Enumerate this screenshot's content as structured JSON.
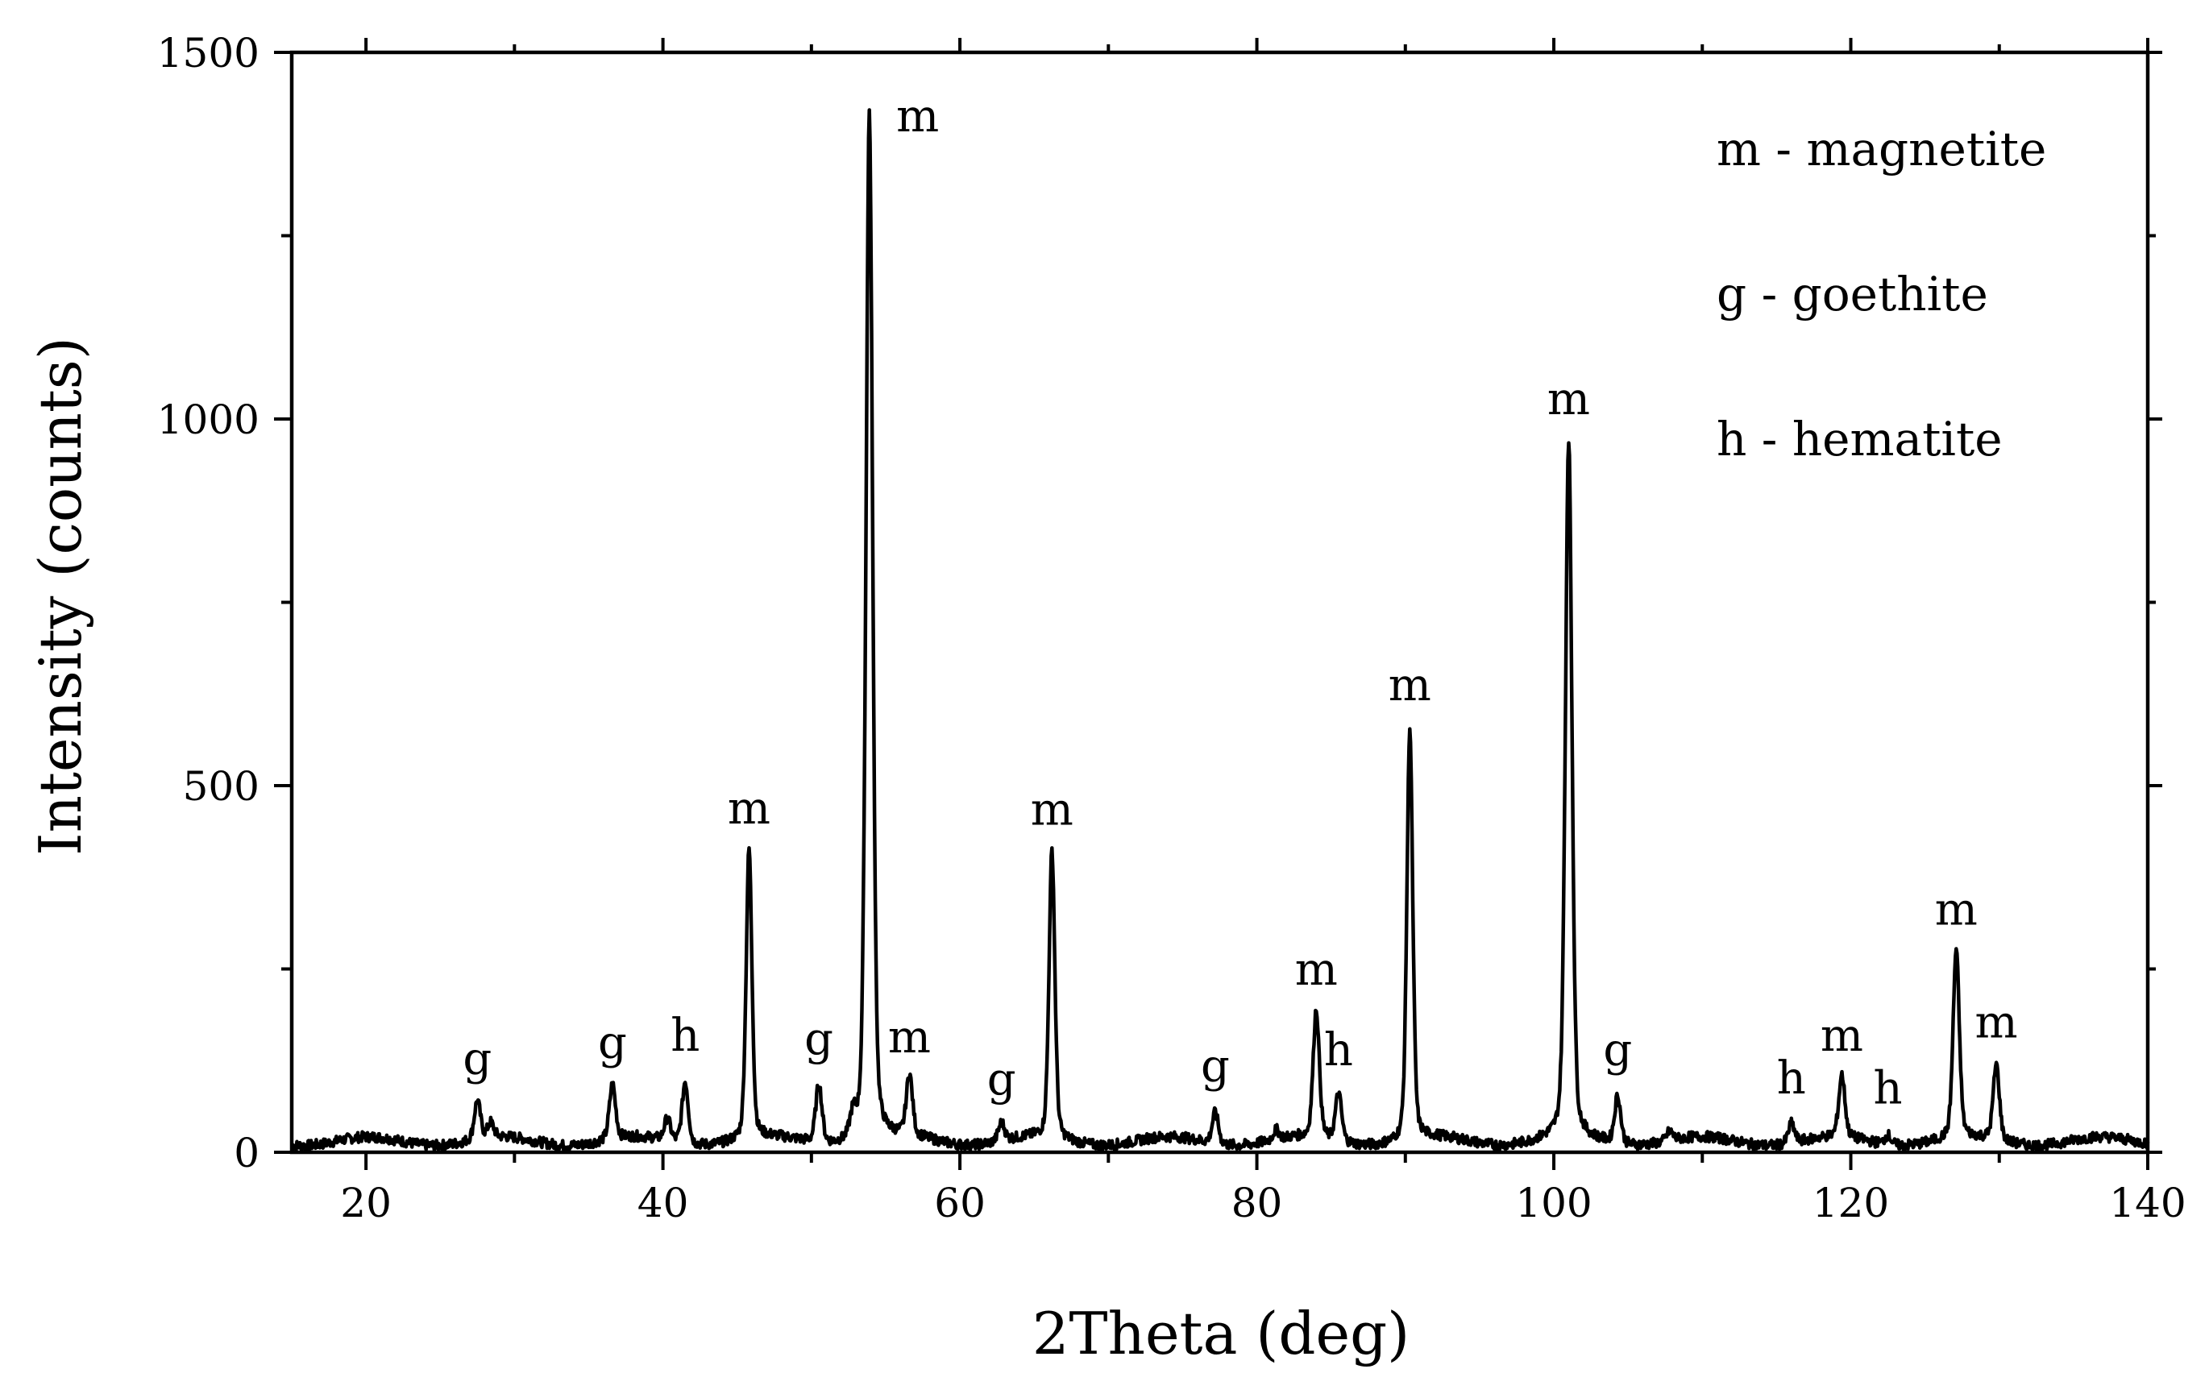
{
  "chart_data": {
    "type": "line",
    "title": "",
    "xlabel": "2Theta (deg)",
    "ylabel": "Intensity (counts)",
    "xlim": [
      15,
      140
    ],
    "ylim": [
      0,
      1500
    ],
    "x_ticks": [
      20,
      40,
      60,
      80,
      100,
      120,
      140
    ],
    "y_ticks": [
      0,
      500,
      1000,
      1500
    ],
    "x_tick_labels": [
      "20",
      "40",
      "60",
      "80",
      "100",
      "120",
      "140"
    ],
    "y_tick_labels": [
      "0",
      "500",
      "1000",
      "1500"
    ],
    "grid": false,
    "legend_position": "top-right",
    "legend": [
      "m - magnetite",
      "g - goethite",
      "h - hematite"
    ],
    "line_color": "#000000",
    "baseline": 15,
    "peaks": [
      {
        "x": 27.5,
        "y": 68,
        "label": "g"
      },
      {
        "x": 28.4,
        "y": 35,
        "label": ""
      },
      {
        "x": 36.6,
        "y": 90,
        "label": "g"
      },
      {
        "x": 40.3,
        "y": 45,
        "label": ""
      },
      {
        "x": 41.5,
        "y": 100,
        "label": "h"
      },
      {
        "x": 45.8,
        "y": 410,
        "label": "m"
      },
      {
        "x": 50.5,
        "y": 95,
        "label": "g"
      },
      {
        "x": 52.8,
        "y": 45,
        "label": ""
      },
      {
        "x": 53.9,
        "y": 1420,
        "label": "m"
      },
      {
        "x": 56.6,
        "y": 98,
        "label": "m"
      },
      {
        "x": 62.8,
        "y": 40,
        "label": "g"
      },
      {
        "x": 66.2,
        "y": 408,
        "label": "m"
      },
      {
        "x": 77.2,
        "y": 58,
        "label": "g"
      },
      {
        "x": 81.3,
        "y": 28,
        "label": ""
      },
      {
        "x": 84.0,
        "y": 190,
        "label": "m"
      },
      {
        "x": 85.5,
        "y": 80,
        "label": "h"
      },
      {
        "x": 90.3,
        "y": 578,
        "label": "m"
      },
      {
        "x": 101.0,
        "y": 968,
        "label": "m"
      },
      {
        "x": 104.3,
        "y": 80,
        "label": "g"
      },
      {
        "x": 107.8,
        "y": 28,
        "label": ""
      },
      {
        "x": 116.0,
        "y": 42,
        "label": "h"
      },
      {
        "x": 119.4,
        "y": 100,
        "label": "m"
      },
      {
        "x": 122.5,
        "y": 28,
        "label": "h"
      },
      {
        "x": 127.1,
        "y": 272,
        "label": "m"
      },
      {
        "x": 129.8,
        "y": 118,
        "label": "m"
      }
    ]
  }
}
